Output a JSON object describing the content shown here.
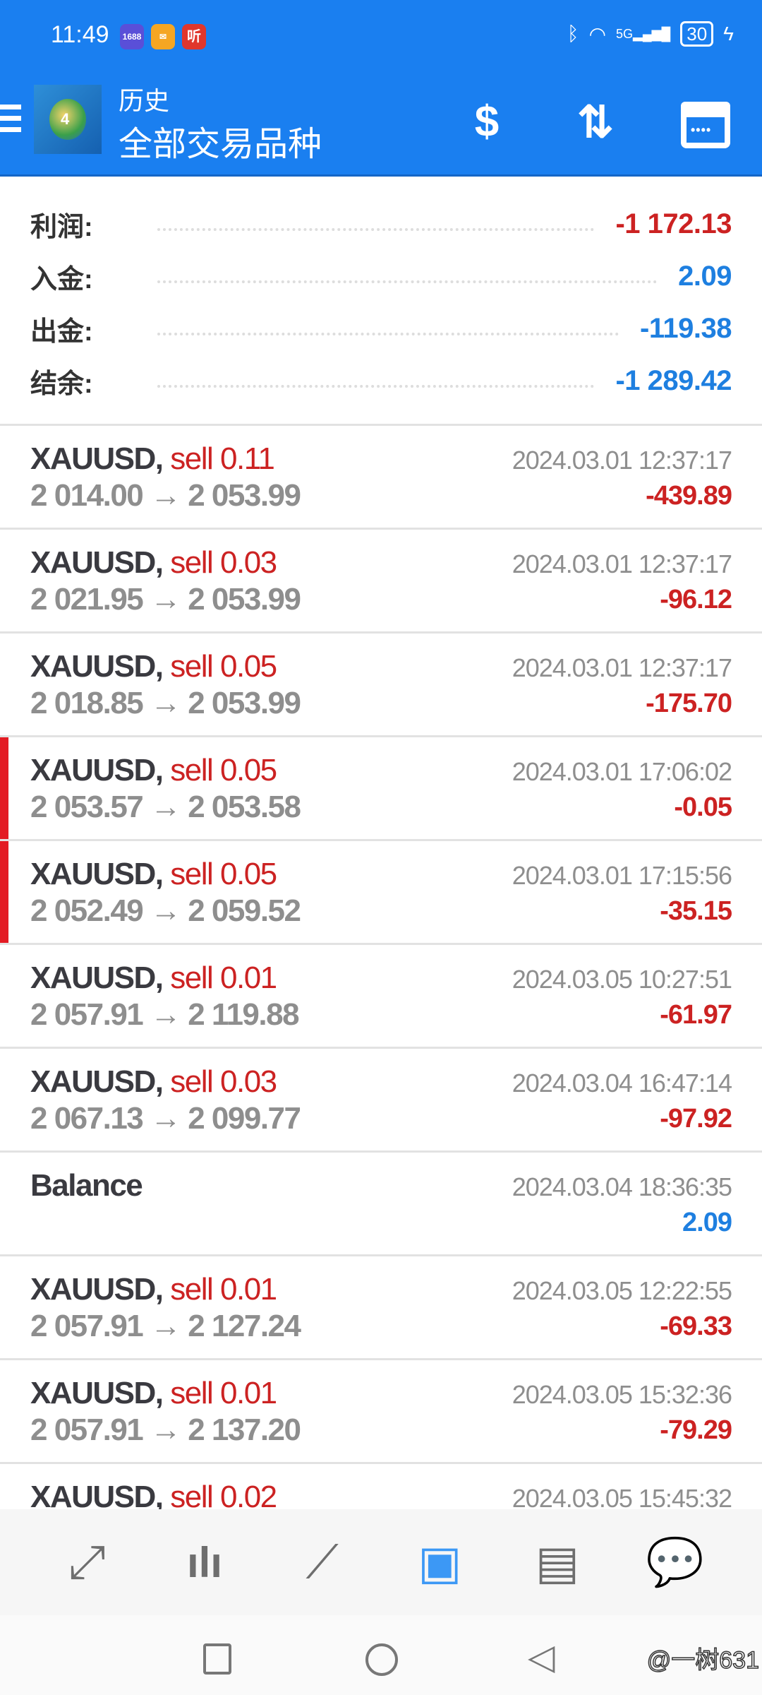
{
  "status": {
    "time": "11:49",
    "apps": [
      "1688",
      "mail",
      "听"
    ],
    "network": "5G",
    "battery": "30"
  },
  "header": {
    "title": "历史",
    "subtitle": "全部交易品种",
    "colors": {
      "bar": "#1a7ff0"
    }
  },
  "summary": [
    {
      "label": "利润:",
      "value": "-1 172.13",
      "tone": "neg"
    },
    {
      "label": "入金:",
      "value": "2.09",
      "tone": "pos"
    },
    {
      "label": "出金:",
      "value": "-119.38",
      "tone": "pos"
    },
    {
      "label": "结余:",
      "value": "-1 289.42",
      "tone": "pos"
    }
  ],
  "deals": [
    {
      "symbol": "XAUUSD,",
      "side": "sell 0.11",
      "prices": "2 014.00 → 2 053.99",
      "time": "2024.03.01 12:37:17",
      "profit": "-439.89",
      "tone": "neg",
      "marked": false
    },
    {
      "symbol": "XAUUSD,",
      "side": "sell 0.03",
      "prices": "2 021.95 → 2 053.99",
      "time": "2024.03.01 12:37:17",
      "profit": "-96.12",
      "tone": "neg",
      "marked": false
    },
    {
      "symbol": "XAUUSD,",
      "side": "sell 0.05",
      "prices": "2 018.85 → 2 053.99",
      "time": "2024.03.01 12:37:17",
      "profit": "-175.70",
      "tone": "neg",
      "marked": false
    },
    {
      "symbol": "XAUUSD,",
      "side": "sell 0.05",
      "prices": "2 053.57 → 2 053.58",
      "time": "2024.03.01 17:06:02",
      "profit": "-0.05",
      "tone": "neg",
      "marked": true
    },
    {
      "symbol": "XAUUSD,",
      "side": "sell 0.05",
      "prices": "2 052.49 → 2 059.52",
      "time": "2024.03.01 17:15:56",
      "profit": "-35.15",
      "tone": "neg",
      "marked": true
    },
    {
      "symbol": "XAUUSD,",
      "side": "sell 0.01",
      "prices": "2 057.91 → 2 119.88",
      "time": "2024.03.05 10:27:51",
      "profit": "-61.97",
      "tone": "neg",
      "marked": false
    },
    {
      "symbol": "XAUUSD,",
      "side": "sell 0.03",
      "prices": "2 067.13 → 2 099.77",
      "time": "2024.03.04 16:47:14",
      "profit": "-97.92",
      "tone": "neg",
      "marked": false
    },
    {
      "symbol": "Balance",
      "side": "",
      "prices": "",
      "time": "2024.03.04 18:36:35",
      "profit": "2.09",
      "tone": "pos",
      "marked": false
    },
    {
      "symbol": "XAUUSD,",
      "side": "sell 0.01",
      "prices": "2 057.91 → 2 127.24",
      "time": "2024.03.05 12:22:55",
      "profit": "-69.33",
      "tone": "neg",
      "marked": false
    },
    {
      "symbol": "XAUUSD,",
      "side": "sell 0.01",
      "prices": "2 057.91 → 2 137.20",
      "time": "2024.03.05 15:32:36",
      "profit": "-79.29",
      "tone": "neg",
      "marked": false
    },
    {
      "symbol": "XAUUSD,",
      "side": "sell 0.02",
      "prices": "",
      "time": "2024.03.05 15:45:32",
      "profit": "",
      "tone": "neg",
      "marked": false
    }
  ],
  "bottom_nav": [
    {
      "name": "quotes",
      "icon": "arrows-diagonal-icon",
      "active": false
    },
    {
      "name": "chart",
      "icon": "candlestick-icon",
      "active": false
    },
    {
      "name": "trade",
      "icon": "trend-icon",
      "active": false
    },
    {
      "name": "history",
      "icon": "inbox-icon",
      "active": true
    },
    {
      "name": "news",
      "icon": "newspaper-icon",
      "active": false
    },
    {
      "name": "messages",
      "icon": "chat-icon",
      "active": false
    }
  ],
  "watermark": "@一树631"
}
